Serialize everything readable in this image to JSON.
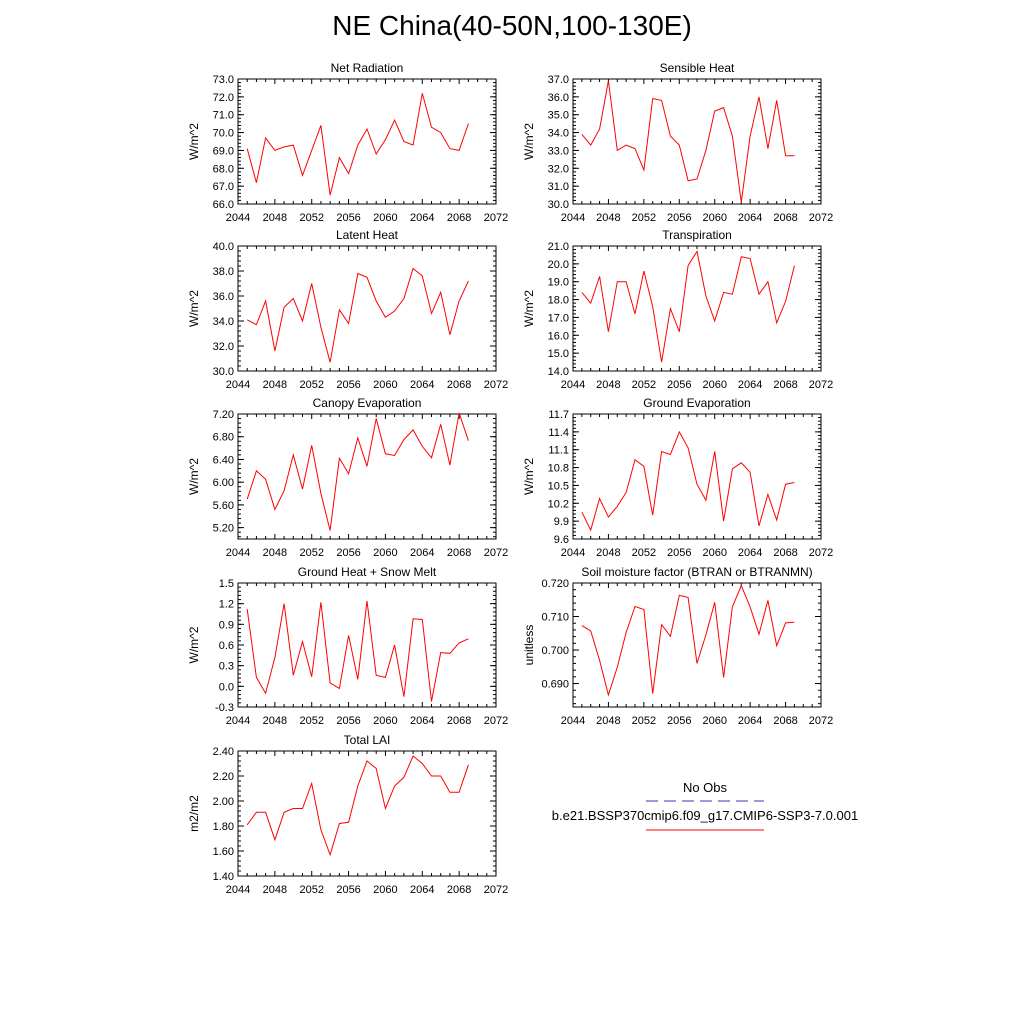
{
  "title": "NE China(40-50N,100-130E)",
  "legend": {
    "obs_label": "No Obs",
    "obs_color": "#3a3ab0",
    "model_label": "b.e21.BSSP370cmip6.f09_g17.CMIP6-SSP3-7.0.001",
    "model_color": "#ff0000"
  },
  "chart_data": [
    {
      "type": "line",
      "title": "Net Radiation",
      "ylabel": "W/m^2",
      "xlim": [
        2044,
        2072
      ],
      "xticks": [
        2044,
        2048,
        2052,
        2056,
        2060,
        2064,
        2068,
        2072
      ],
      "ylim": [
        66.0,
        73.0
      ],
      "yticks": [
        66.0,
        67.0,
        68.0,
        69.0,
        70.0,
        71.0,
        72.0,
        73.0
      ],
      "ytick_labels": [
        "66.0",
        "67.0",
        "68.0",
        "69.0",
        "70.0",
        "71.0",
        "72.0",
        "73.0"
      ],
      "x": [
        2045,
        2046,
        2047,
        2048,
        2049,
        2050,
        2051,
        2052,
        2053,
        2054,
        2055,
        2056,
        2057,
        2058,
        2059,
        2060,
        2061,
        2062,
        2063,
        2064,
        2065,
        2066,
        2067,
        2068,
        2069
      ],
      "values": [
        69.1,
        67.2,
        69.7,
        69.0,
        69.2,
        69.3,
        67.6,
        69.0,
        70.4,
        66.5,
        68.6,
        67.7,
        69.3,
        70.2,
        68.8,
        69.6,
        70.7,
        69.5,
        69.3,
        72.2,
        70.3,
        70.0,
        69.1,
        69.0,
        70.5
      ]
    },
    {
      "type": "line",
      "title": "Sensible Heat",
      "ylabel": "W/m^2",
      "xlim": [
        2044,
        2072
      ],
      "xticks": [
        2044,
        2048,
        2052,
        2056,
        2060,
        2064,
        2068,
        2072
      ],
      "ylim": [
        30.0,
        37.0
      ],
      "yticks": [
        30.0,
        31.0,
        32.0,
        33.0,
        34.0,
        35.0,
        36.0,
        37.0
      ],
      "ytick_labels": [
        "30.0",
        "31.0",
        "32.0",
        "33.0",
        "34.0",
        "35.0",
        "36.0",
        "37.0"
      ],
      "x": [
        2045,
        2046,
        2047,
        2048,
        2049,
        2050,
        2051,
        2052,
        2053,
        2054,
        2055,
        2056,
        2057,
        2058,
        2059,
        2060,
        2061,
        2062,
        2063,
        2064,
        2065,
        2066,
        2067,
        2068,
        2069
      ],
      "values": [
        33.9,
        33.3,
        34.2,
        36.9,
        33.0,
        33.3,
        33.1,
        31.9,
        35.9,
        35.8,
        33.8,
        33.3,
        31.3,
        31.4,
        33.0,
        35.2,
        35.4,
        33.8,
        30.1,
        33.8,
        36.0,
        33.1,
        35.8,
        32.7,
        32.7
      ]
    },
    {
      "type": "line",
      "title": "Latent Heat",
      "ylabel": "W/m^2",
      "xlim": [
        2044,
        2072
      ],
      "xticks": [
        2044,
        2048,
        2052,
        2056,
        2060,
        2064,
        2068,
        2072
      ],
      "ylim": [
        30.0,
        40.0
      ],
      "yticks": [
        30.0,
        32.0,
        34.0,
        36.0,
        38.0,
        40.0
      ],
      "ytick_labels": [
        "30.0",
        "32.0",
        "34.0",
        "36.0",
        "38.0",
        "40.0"
      ],
      "x": [
        2045,
        2046,
        2047,
        2048,
        2049,
        2050,
        2051,
        2052,
        2053,
        2054,
        2055,
        2056,
        2057,
        2058,
        2059,
        2060,
        2061,
        2062,
        2063,
        2064,
        2065,
        2066,
        2067,
        2068,
        2069
      ],
      "values": [
        34.1,
        33.7,
        35.6,
        31.6,
        35.1,
        35.8,
        34.0,
        37.0,
        33.5,
        30.7,
        34.9,
        33.8,
        37.8,
        37.5,
        35.6,
        34.3,
        34.8,
        35.8,
        38.2,
        37.6,
        34.6,
        36.3,
        32.9,
        35.6,
        37.2
      ]
    },
    {
      "type": "line",
      "title": "Transpiration",
      "ylabel": "W/m^2",
      "xlim": [
        2044,
        2072
      ],
      "xticks": [
        2044,
        2048,
        2052,
        2056,
        2060,
        2064,
        2068,
        2072
      ],
      "ylim": [
        14.0,
        21.0
      ],
      "yticks": [
        14.0,
        15.0,
        16.0,
        17.0,
        18.0,
        19.0,
        20.0,
        21.0
      ],
      "ytick_labels": [
        "14.0",
        "15.0",
        "16.0",
        "17.0",
        "18.0",
        "19.0",
        "20.0",
        "21.0"
      ],
      "x": [
        2045,
        2046,
        2047,
        2048,
        2049,
        2050,
        2051,
        2052,
        2053,
        2054,
        2055,
        2056,
        2057,
        2058,
        2059,
        2060,
        2061,
        2062,
        2063,
        2064,
        2065,
        2066,
        2067,
        2068,
        2069
      ],
      "values": [
        18.4,
        17.8,
        19.3,
        16.2,
        19.0,
        19.0,
        17.2,
        19.6,
        17.6,
        14.5,
        17.5,
        16.2,
        19.9,
        20.7,
        18.2,
        16.8,
        18.4,
        18.3,
        20.4,
        20.3,
        18.3,
        19.0,
        16.7,
        17.9,
        19.9
      ]
    },
    {
      "type": "line",
      "title": "Canopy Evaporation",
      "ylabel": "W/m^2",
      "xlim": [
        2044,
        2072
      ],
      "xticks": [
        2044,
        2048,
        2052,
        2056,
        2060,
        2064,
        2068,
        2072
      ],
      "ylim": [
        5.0,
        7.2
      ],
      "yticks": [
        5.2,
        5.6,
        6.0,
        6.4,
        6.8,
        7.2
      ],
      "ytick_labels": [
        "5.20",
        "5.60",
        "6.00",
        "6.40",
        "6.80",
        "7.20"
      ],
      "x": [
        2045,
        2046,
        2047,
        2048,
        2049,
        2050,
        2051,
        2052,
        2053,
        2054,
        2055,
        2056,
        2057,
        2058,
        2059,
        2060,
        2061,
        2062,
        2063,
        2064,
        2065,
        2066,
        2067,
        2068,
        2069
      ],
      "values": [
        5.7,
        6.2,
        6.05,
        5.52,
        5.85,
        6.48,
        5.88,
        6.65,
        5.8,
        5.15,
        6.42,
        6.15,
        6.78,
        6.28,
        7.12,
        6.5,
        6.47,
        6.75,
        6.92,
        6.63,
        6.43,
        7.02,
        6.3,
        7.22,
        6.73
      ]
    },
    {
      "type": "line",
      "title": "Ground Evaporation",
      "ylabel": "W/m^2",
      "xlim": [
        2044,
        2072
      ],
      "xticks": [
        2044,
        2048,
        2052,
        2056,
        2060,
        2064,
        2068,
        2072
      ],
      "ylim": [
        9.6,
        11.7
      ],
      "yticks": [
        9.6,
        9.9,
        10.2,
        10.5,
        10.8,
        11.1,
        11.4,
        11.7
      ],
      "ytick_labels": [
        "9.6",
        "9.9",
        "10.2",
        "10.5",
        "10.8",
        "11.1",
        "11.4",
        "11.7"
      ],
      "x": [
        2045,
        2046,
        2047,
        2048,
        2049,
        2050,
        2051,
        2052,
        2053,
        2054,
        2055,
        2056,
        2057,
        2058,
        2059,
        2060,
        2061,
        2062,
        2063,
        2064,
        2065,
        2066,
        2067,
        2068,
        2069
      ],
      "values": [
        10.05,
        9.75,
        10.28,
        9.97,
        10.15,
        10.38,
        10.93,
        10.82,
        10.0,
        11.07,
        11.02,
        11.4,
        11.13,
        10.52,
        10.25,
        11.07,
        9.9,
        10.78,
        10.88,
        10.72,
        9.82,
        10.35,
        9.92,
        10.52,
        10.55
      ]
    },
    {
      "type": "line",
      "title": "Ground Heat + Snow Melt",
      "ylabel": "W/m^2",
      "xlim": [
        2044,
        2072
      ],
      "xticks": [
        2044,
        2048,
        2052,
        2056,
        2060,
        2064,
        2068,
        2072
      ],
      "ylim": [
        -0.3,
        1.5
      ],
      "yticks": [
        -0.3,
        0.0,
        0.3,
        0.6,
        0.9,
        1.2,
        1.5
      ],
      "ytick_labels": [
        "-0.3",
        "0.0",
        "0.3",
        "0.6",
        "0.9",
        "1.2",
        "1.5"
      ],
      "x": [
        2045,
        2046,
        2047,
        2048,
        2049,
        2050,
        2051,
        2052,
        2053,
        2054,
        2055,
        2056,
        2057,
        2058,
        2059,
        2060,
        2061,
        2062,
        2063,
        2064,
        2065,
        2066,
        2067,
        2068,
        2069
      ],
      "values": [
        1.12,
        0.13,
        -0.1,
        0.42,
        1.2,
        0.16,
        0.65,
        0.14,
        1.22,
        0.05,
        -0.03,
        0.74,
        0.1,
        1.24,
        0.16,
        0.13,
        0.6,
        -0.15,
        0.98,
        0.97,
        -0.22,
        0.49,
        0.48,
        0.63,
        0.69
      ]
    },
    {
      "type": "line",
      "title": "Soil moisture factor (BTRAN or BTRANMN)",
      "ylabel": "unitless",
      "xlim": [
        2044,
        2072
      ],
      "xticks": [
        2044,
        2048,
        2052,
        2056,
        2060,
        2064,
        2068,
        2072
      ],
      "ylim": [
        0.683,
        0.72
      ],
      "yticks": [
        0.69,
        0.7,
        0.71,
        0.72
      ],
      "ytick_labels": [
        "0.690",
        "0.700",
        "0.710",
        "0.720"
      ],
      "x": [
        2045,
        2046,
        2047,
        2048,
        2049,
        2050,
        2051,
        2052,
        2053,
        2054,
        2055,
        2056,
        2057,
        2058,
        2059,
        2060,
        2061,
        2062,
        2063,
        2064,
        2065,
        2066,
        2067,
        2068,
        2069
      ],
      "values": [
        0.7073,
        0.7057,
        0.6969,
        0.6866,
        0.6949,
        0.7052,
        0.713,
        0.7121,
        0.687,
        0.7076,
        0.7041,
        0.7163,
        0.7157,
        0.696,
        0.7045,
        0.7142,
        0.6918,
        0.7129,
        0.7192,
        0.7129,
        0.7047,
        0.7148,
        0.7013,
        0.7081,
        0.7083
      ]
    },
    {
      "type": "line",
      "title": "Total LAI",
      "ylabel": "m2/m2",
      "xlim": [
        2044,
        2072
      ],
      "xticks": [
        2044,
        2048,
        2052,
        2056,
        2060,
        2064,
        2068,
        2072
      ],
      "ylim": [
        1.4,
        2.4
      ],
      "yticks": [
        1.4,
        1.6,
        1.8,
        2.0,
        2.2,
        2.4
      ],
      "ytick_labels": [
        "1.40",
        "1.60",
        "1.80",
        "2.00",
        "2.20",
        "2.40"
      ],
      "x": [
        2045,
        2046,
        2047,
        2048,
        2049,
        2050,
        2051,
        2052,
        2053,
        2054,
        2055,
        2056,
        2057,
        2058,
        2059,
        2060,
        2061,
        2062,
        2063,
        2064,
        2065,
        2066,
        2067,
        2068,
        2069
      ],
      "values": [
        1.81,
        1.91,
        1.91,
        1.69,
        1.91,
        1.94,
        1.94,
        2.14,
        1.77,
        1.57,
        1.82,
        1.83,
        2.12,
        2.32,
        2.26,
        1.94,
        2.12,
        2.19,
        2.36,
        2.3,
        2.2,
        2.2,
        2.07,
        2.07,
        2.29
      ]
    }
  ]
}
